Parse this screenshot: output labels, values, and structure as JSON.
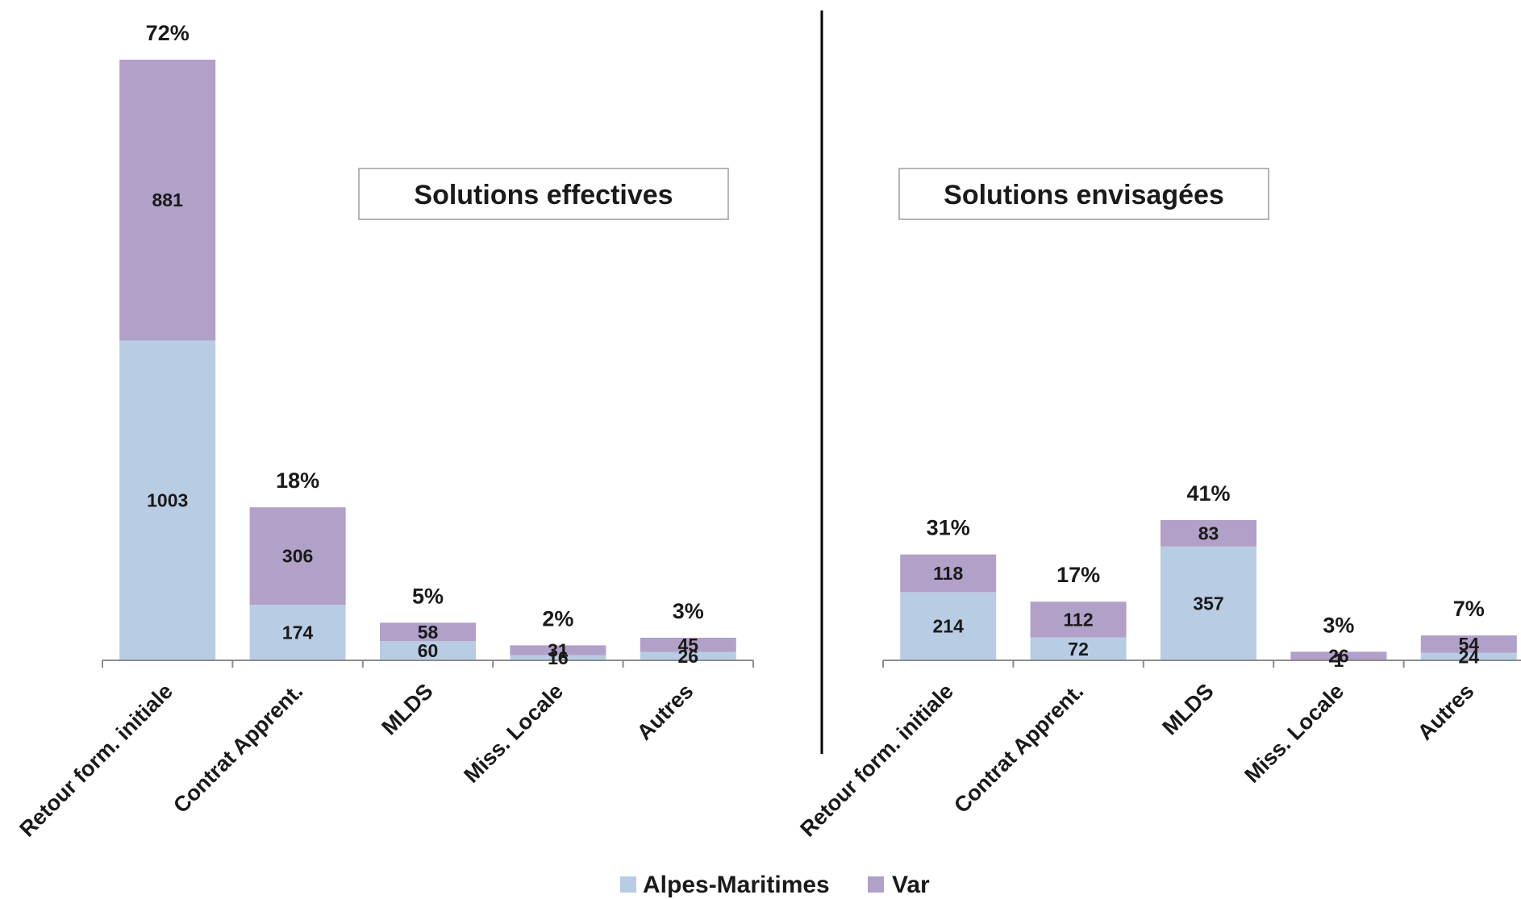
{
  "chart_data": {
    "type": "bar",
    "stacked": true,
    "colors": {
      "Alpes-Maritimes": "#b8cce4",
      "Var": "#b1a0c7"
    },
    "legend": {
      "position": "bottom",
      "entries": [
        "Alpes-Maritimes",
        "Var"
      ]
    },
    "grid": false,
    "panels": [
      {
        "title": "Solutions effectives",
        "categories": [
          "Retour form. initiale",
          "Contrat Apprent.",
          "MLDS",
          "Miss. Locale",
          "Autres"
        ],
        "series": [
          {
            "name": "Alpes-Maritimes",
            "values": [
              1003,
              174,
              60,
              16,
              26
            ]
          },
          {
            "name": "Var",
            "values": [
              881,
              306,
              58,
              31,
              45
            ]
          }
        ],
        "percent_labels": [
          "72%",
          "18%",
          "5%",
          "2%",
          "3%"
        ]
      },
      {
        "title": "Solutions envisagées",
        "categories": [
          "Retour form. initiale",
          "Contrat Apprent.",
          "MLDS",
          "Miss. Locale",
          "Autres"
        ],
        "series": [
          {
            "name": "Alpes-Maritimes",
            "values": [
              214,
              72,
              357,
              1,
              24
            ]
          },
          {
            "name": "Var",
            "values": [
              118,
              112,
              83,
              26,
              54
            ]
          }
        ],
        "percent_labels": [
          "31%",
          "17%",
          "41%",
          "3%",
          "7%"
        ]
      }
    ]
  }
}
